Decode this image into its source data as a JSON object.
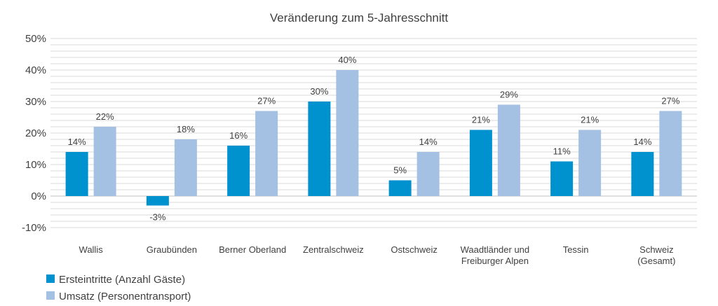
{
  "chart_data": {
    "type": "bar",
    "title": "Veränderung zum 5-Jahresschnitt",
    "categories": [
      [
        "Wallis"
      ],
      [
        "Graubünden"
      ],
      [
        "Berner Oberland"
      ],
      [
        "Zentralschweiz"
      ],
      [
        "Ostschweiz"
      ],
      [
        "Waadtländer und",
        "Freiburger Alpen"
      ],
      [
        "Tessin"
      ],
      [
        "Schweiz",
        "(Gesamt)"
      ]
    ],
    "series": [
      {
        "name": "Ersteintritte (Anzahl Gäste)",
        "color": "#0091cf",
        "values": [
          14,
          -3,
          16,
          30,
          5,
          21,
          11,
          14
        ],
        "labels": [
          "14%",
          "-3%",
          "16%",
          "30%",
          "5%",
          "21%",
          "11%",
          "14%"
        ]
      },
      {
        "name": "Umsatz (Personentransport)",
        "color": "#a4c1e4",
        "values": [
          22,
          18,
          27,
          40,
          14,
          29,
          21,
          27
        ],
        "labels": [
          "22%",
          "18%",
          "27%",
          "40%",
          "14%",
          "29%",
          "21%",
          "27%"
        ]
      }
    ],
    "yticks": [
      "-10%",
      "0%",
      "10%",
      "20%",
      "30%",
      "40%",
      "50%"
    ],
    "ylim": [
      -10,
      50
    ],
    "legend_position": "bottom-left",
    "grid": true
  }
}
